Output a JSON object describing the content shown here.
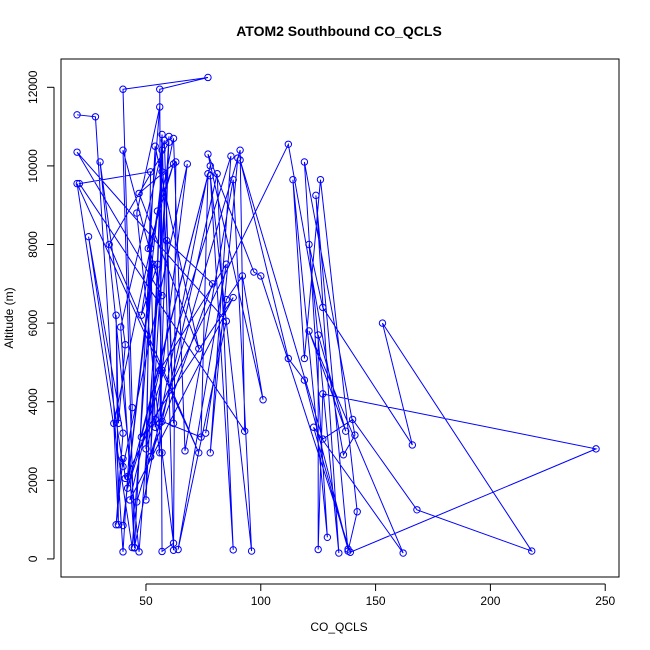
{
  "chart_data": {
    "type": "line",
    "title": "ATOM2 Southbound CO_QCLS",
    "xlabel": "CO_QCLS",
    "ylabel": "Altitude (m)",
    "xlim": [
      13,
      256
    ],
    "ylim": [
      -460,
      12720
    ],
    "xticks": [
      50,
      100,
      150,
      200,
      250
    ],
    "yticks": [
      0,
      2000,
      4000,
      6000,
      8000,
      10000,
      12000
    ],
    "grid": false,
    "legend": "none",
    "line_color": "#0000ff",
    "marker": "open-circle",
    "series": [
      {
        "points": [
          [
            20,
            11300
          ],
          [
            28,
            11250
          ],
          [
            40,
            180
          ],
          [
            42,
            2100
          ],
          [
            44,
            3850
          ],
          [
            40,
            11950
          ],
          [
            77,
            12250
          ],
          [
            56,
            11950
          ],
          [
            57,
            190
          ],
          [
            62,
            400
          ],
          [
            57,
            2700
          ],
          [
            46,
            8800
          ],
          [
            56,
            11500
          ],
          [
            51,
            7900
          ],
          [
            62,
            10050
          ],
          [
            55,
            8850
          ],
          [
            48,
            6200
          ],
          [
            55,
            7500
          ],
          [
            57,
            4800
          ],
          [
            56,
            3450
          ],
          [
            60,
            10750
          ],
          [
            52,
            2600
          ],
          [
            57,
            10800
          ],
          [
            62,
            220
          ],
          [
            63,
            10100
          ],
          [
            47,
            9300
          ],
          [
            73,
            5350
          ],
          [
            54,
            10500
          ],
          [
            45,
            280
          ],
          [
            40,
            10400
          ],
          [
            57,
            6700
          ],
          [
            20,
            10350
          ],
          [
            85,
            6050
          ],
          [
            64,
            240
          ],
          [
            85,
            7500
          ],
          [
            56,
            4800
          ],
          [
            43,
            1500
          ],
          [
            88,
            6650
          ],
          [
            48,
            3100
          ],
          [
            78,
            10000
          ],
          [
            42,
            1800
          ],
          [
            87,
            10250
          ],
          [
            78,
            2700
          ],
          [
            90,
            10200
          ],
          [
            46,
            1450
          ],
          [
            91,
            10400
          ],
          [
            93,
            3250
          ],
          [
            21,
            9550
          ],
          [
            52,
            9850
          ],
          [
            50,
            1500
          ],
          [
            57,
            9850
          ],
          [
            40,
            850
          ],
          [
            53,
            7500
          ],
          [
            44,
            290
          ],
          [
            20,
            9550
          ],
          [
            73,
            2700
          ],
          [
            34,
            8000
          ],
          [
            60,
            10600
          ],
          [
            47,
            180
          ],
          [
            30,
            10100
          ],
          [
            41,
            5450
          ],
          [
            38,
            3450
          ],
          [
            37,
            6200
          ],
          [
            38,
            870
          ],
          [
            36,
            3450
          ],
          [
            62,
            10700
          ],
          [
            67,
            2750
          ],
          [
            88,
            9650
          ],
          [
            96,
            200
          ],
          [
            78,
            9750
          ],
          [
            88,
            230
          ],
          [
            81,
            9800
          ],
          [
            57,
            3500
          ],
          [
            74,
            3100
          ],
          [
            77,
            9800
          ],
          [
            45,
            290
          ],
          [
            39,
            5900
          ],
          [
            58,
            10650
          ],
          [
            62,
            3450
          ],
          [
            59,
            8100
          ],
          [
            79,
            7000
          ],
          [
            52,
            2600
          ],
          [
            57,
            10400
          ],
          [
            56,
            2700
          ],
          [
            54,
            3550
          ],
          [
            50,
            2800
          ],
          [
            52,
            7900
          ],
          [
            54,
            3350
          ],
          [
            68,
            10050
          ],
          [
            40,
            2350
          ],
          [
            25,
            8200
          ],
          [
            40,
            3200
          ],
          [
            37,
            870
          ],
          [
            40,
            2550
          ],
          [
            41,
            2050
          ],
          [
            112,
            10550
          ],
          [
            136,
            2650
          ],
          [
            141,
            3150
          ],
          [
            119,
            10100
          ],
          [
            129,
            550
          ],
          [
            114,
            9650
          ],
          [
            119,
            5100
          ],
          [
            126,
            9650
          ],
          [
            142,
            1200
          ],
          [
            138,
            200
          ],
          [
            124,
            9250
          ],
          [
            134,
            150
          ],
          [
            121,
            8000
          ],
          [
            127,
            6400
          ],
          [
            166,
            2900
          ],
          [
            153,
            6000
          ],
          [
            218,
            200
          ],
          [
            168,
            1250
          ],
          [
            140,
            3550
          ],
          [
            127,
            3050
          ],
          [
            91,
            10150
          ],
          [
            112,
            5100
          ],
          [
            119,
            4550
          ],
          [
            138,
            250
          ],
          [
            123,
            3350
          ],
          [
            162,
            150
          ],
          [
            121,
            5800
          ],
          [
            137,
            3250
          ],
          [
            125,
            5700
          ],
          [
            125,
            240
          ],
          [
            127,
            4200
          ],
          [
            246,
            2800
          ],
          [
            139,
            170
          ],
          [
            100,
            7200
          ],
          [
            97,
            7300
          ],
          [
            77,
            10300
          ],
          [
            101,
            4050
          ],
          [
            92,
            7200
          ],
          [
            85,
            6600
          ],
          [
            76,
            3200
          ]
        ]
      }
    ]
  }
}
